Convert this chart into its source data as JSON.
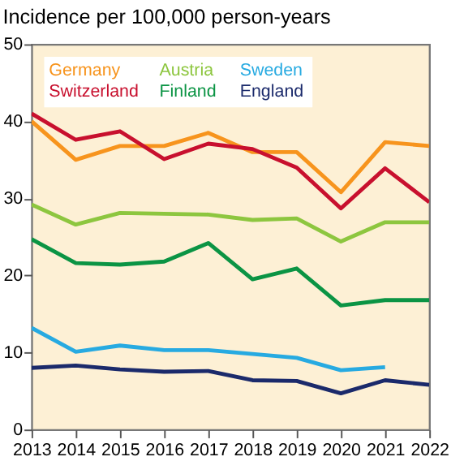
{
  "chart_data": {
    "type": "line",
    "title": "Incidence per 100,000 person-years",
    "x": [
      2013,
      2014,
      2015,
      2016,
      2017,
      2018,
      2019,
      2020,
      2021,
      2022
    ],
    "series": [
      {
        "name": "Germany",
        "color": "#f7941d",
        "values": [
          40,
          35,
          36.8,
          36.8,
          38.5,
          36,
          36,
          30.8,
          37.3,
          36.8
        ]
      },
      {
        "name": "Austria",
        "color": "#8dc63f",
        "values": [
          29.2,
          26.6,
          28.1,
          28,
          27.9,
          27.2,
          27.4,
          24.4,
          26.9,
          26.9
        ]
      },
      {
        "name": "Sweden",
        "color": "#27aae1",
        "values": [
          13.2,
          10.1,
          10.9,
          10.3,
          10.3,
          9.8,
          9.3,
          7.7,
          8.1,
          null
        ]
      },
      {
        "name": "Switzerland",
        "color": "#c8102e",
        "values": [
          41,
          37.6,
          38.7,
          35.1,
          37.1,
          36.4,
          34,
          28.7,
          33.9,
          29.5
        ]
      },
      {
        "name": "Finland",
        "color": "#0b9444",
        "values": [
          24.7,
          21.6,
          21.4,
          21.8,
          24.2,
          19.5,
          20.9,
          16.1,
          16.8,
          16.8
        ]
      },
      {
        "name": "England",
        "color": "#1b2a6b",
        "values": [
          8.0,
          8.3,
          7.8,
          7.5,
          7.6,
          6.4,
          6.3,
          4.7,
          6.4,
          5.8
        ]
      }
    ],
    "xlim": [
      2013,
      2022
    ],
    "xticks": [
      2013,
      2014,
      2015,
      2016,
      2017,
      2018,
      2019,
      2020,
      2021,
      2022
    ],
    "ylim": [
      0,
      50
    ],
    "yticks": [
      0,
      10,
      20,
      30,
      40,
      50
    ],
    "grid": false,
    "legend": "top left",
    "marker": "none",
    "line_style": "solid"
  }
}
